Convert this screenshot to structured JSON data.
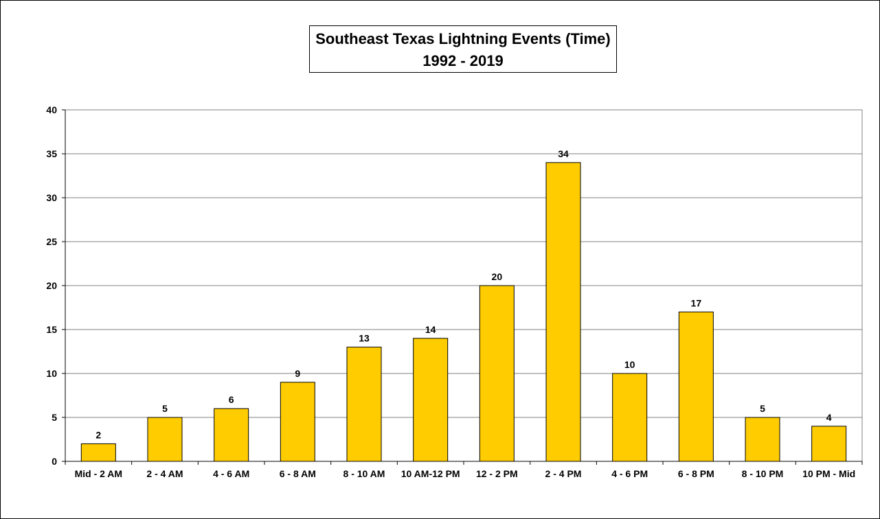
{
  "chart_data": {
    "type": "bar",
    "title": "Southeast Texas Lightning Events (Time)",
    "subtitle": "1992 - 2019",
    "categories": [
      "Mid - 2 AM",
      "2 - 4 AM",
      "4 - 6 AM",
      "6 - 8 AM",
      "8 - 10 AM",
      "10 AM-12 PM",
      "12 - 2 PM",
      "2 - 4 PM",
      "4 - 6 PM",
      "6 - 8 PM",
      "8 - 10 PM",
      "10 PM - Mid"
    ],
    "values": [
      2,
      5,
      6,
      9,
      13,
      14,
      20,
      34,
      10,
      17,
      5,
      4
    ],
    "ylim": [
      0,
      40
    ],
    "yticks": [
      0,
      5,
      10,
      15,
      20,
      25,
      30,
      35,
      40
    ],
    "grid": true,
    "legend": "none",
    "bar_color": "#FFCC00",
    "data_labels": true
  }
}
